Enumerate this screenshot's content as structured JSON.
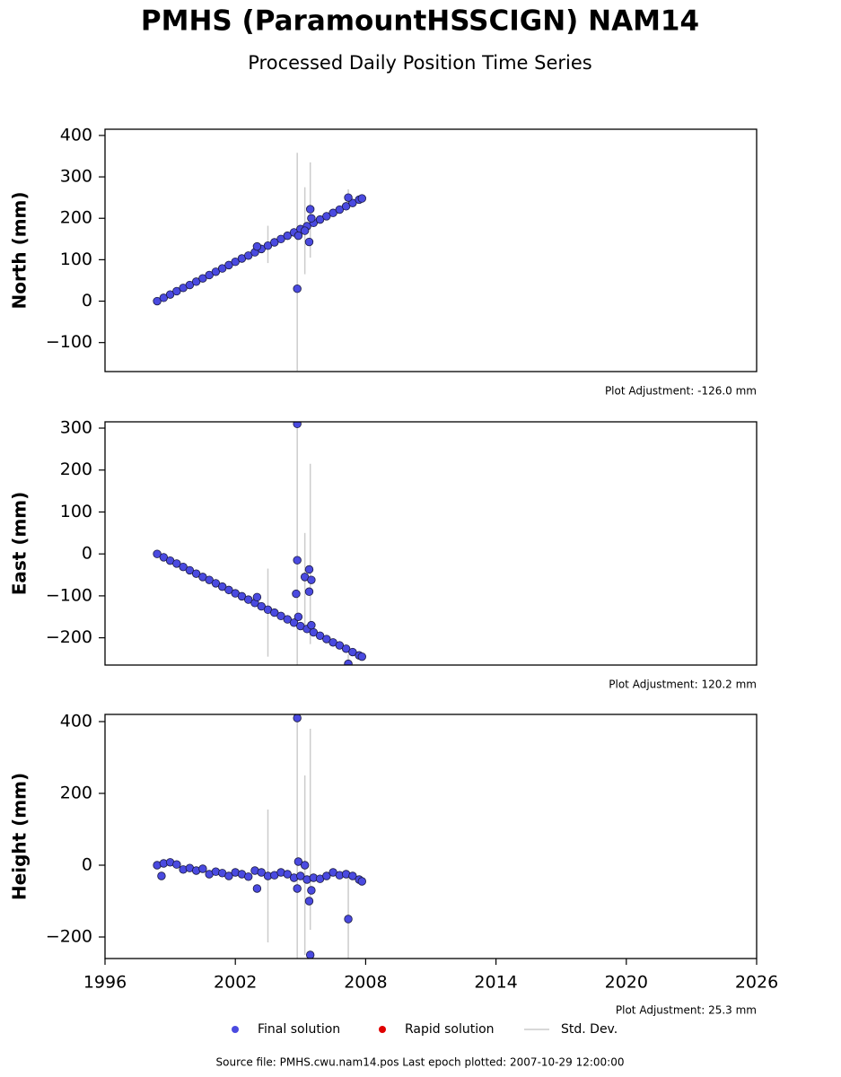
{
  "title": "PMHS (ParamountHSSCIGN) NAM14",
  "subtitle": "Processed Daily Position Time Series",
  "legend": [
    {
      "name": "Final solution",
      "color": "#4a4ae0",
      "style": "point"
    },
    {
      "name": "Rapid solution",
      "color": "#e00000",
      "style": "point"
    },
    {
      "name": "Std. Dev.",
      "color": "#cccccc",
      "style": "line"
    }
  ],
  "footer": "Source file: PMHS.cwu.nam14.pos  Last epoch plotted: 2007-10-29 12:00:00",
  "chart_data": [
    {
      "type": "scatter",
      "y_label": "North (mm)",
      "annotation": "Plot Adjustment: -126.0 mm",
      "xlim": [
        1996,
        2026
      ],
      "ylim": [
        -170,
        415
      ],
      "yticks": [
        {
          "value": -100,
          "label": "−100"
        },
        0,
        100,
        200,
        300,
        400
      ],
      "series": [
        {
          "style": "errorbar",
          "color": "#cccccc",
          "x": [
            2003.5,
            2004.85,
            2005.2,
            2005.45,
            2007.2
          ],
          "values": [
            137,
            95,
            170,
            220,
            250
          ],
          "errors": [
            45,
            263,
            105,
            115,
            20
          ]
        },
        {
          "style": "point",
          "color": "#4a4ae0",
          "x": [
            1998.4,
            1998.7,
            1999.0,
            1999.3,
            1999.6,
            1999.9,
            2000.2,
            2000.5,
            2000.8,
            2001.1,
            2001.4,
            2001.7,
            2002.0,
            2002.3,
            2002.6,
            2002.9,
            2003.2,
            2003.5,
            2003.8,
            2004.1,
            2004.4,
            2004.7,
            2005.0,
            2005.3,
            2005.6,
            2005.9,
            2006.2,
            2006.5,
            2006.8,
            2007.1,
            2007.4,
            2007.7,
            2007.83,
            2004.85,
            2005.45,
            2005.4,
            2005.5,
            2004.9,
            2007.2,
            2003.0,
            2005.2
          ],
          "values": [
            0,
            8,
            16,
            24,
            32,
            39,
            47,
            55,
            63,
            71,
            79,
            87,
            95,
            103,
            110,
            118,
            126,
            134,
            142,
            150,
            158,
            166,
            174,
            181,
            189,
            197,
            205,
            213,
            221,
            229,
            237,
            245,
            248,
            30,
            222,
            143,
            200,
            158,
            250,
            132,
            170
          ]
        }
      ]
    },
    {
      "type": "scatter",
      "y_label": "East (mm)",
      "annotation": "Plot Adjustment: 120.2 mm",
      "xlim": [
        1996,
        2026
      ],
      "ylim": [
        -265,
        315
      ],
      "yticks": [
        {
          "value": -200,
          "label": "−200"
        },
        {
          "value": -100,
          "label": "−100"
        },
        0,
        100,
        200,
        300
      ],
      "series": [
        {
          "style": "errorbar",
          "color": "#cccccc",
          "x": [
            2003.5,
            2004.85,
            2005.2,
            2005.45,
            2007.2
          ],
          "values": [
            -140,
            25,
            -60,
            0,
            -255
          ],
          "errors": [
            105,
            290,
            110,
            215,
            15
          ]
        },
        {
          "style": "point",
          "color": "#4a4ae0",
          "x": [
            1998.4,
            1998.7,
            1999.0,
            1999.3,
            1999.6,
            1999.9,
            2000.2,
            2000.5,
            2000.8,
            2001.1,
            2001.4,
            2001.7,
            2002.0,
            2002.3,
            2002.6,
            2002.9,
            2003.2,
            2003.5,
            2003.8,
            2004.1,
            2004.4,
            2004.7,
            2005.0,
            2005.3,
            2005.6,
            2005.9,
            2006.2,
            2006.5,
            2006.8,
            2007.1,
            2007.4,
            2007.7,
            2007.83,
            2004.85,
            2004.85,
            2004.8,
            2005.2,
            2005.4,
            2005.4,
            2005.5,
            2005.5,
            2004.9,
            2003.0,
            2007.2
          ],
          "values": [
            0,
            -8,
            -16,
            -23,
            -31,
            -39,
            -47,
            -55,
            -62,
            -70,
            -78,
            -86,
            -94,
            -101,
            -109,
            -117,
            -125,
            -133,
            -140,
            -148,
            -156,
            -164,
            -172,
            -179,
            -187,
            -195,
            -203,
            -211,
            -218,
            -226,
            -234,
            -242,
            -245,
            310,
            -15,
            -95,
            -55,
            -37,
            -90,
            -62,
            -170,
            -150,
            -103,
            -262
          ]
        }
      ]
    },
    {
      "type": "scatter",
      "y_label": "Height (mm)",
      "annotation": "Plot Adjustment: 25.3 mm",
      "xlim": [
        1996,
        2026
      ],
      "ylim": [
        -260,
        420
      ],
      "xticks": [
        1996,
        2002,
        2008,
        2014,
        2020,
        2026
      ],
      "yticks": [
        {
          "value": -200,
          "label": "−200"
        },
        0,
        200,
        400
      ],
      "series": [
        {
          "style": "errorbar",
          "color": "#cccccc",
          "x": [
            2003.5,
            2004.85,
            2005.2,
            2005.45,
            2007.2
          ],
          "values": [
            -30,
            80,
            0,
            100,
            -150
          ],
          "errors": [
            185,
            340,
            250,
            280,
            120
          ]
        },
        {
          "style": "point",
          "color": "#4a4ae0",
          "x": [
            1998.4,
            1998.7,
            1999.0,
            1999.3,
            1999.6,
            1999.9,
            2000.2,
            2000.5,
            2000.8,
            2001.1,
            2001.4,
            2001.7,
            2002.0,
            2002.3,
            2002.6,
            2002.9,
            2003.2,
            2003.5,
            2003.8,
            2004.1,
            2004.4,
            2004.7,
            2005.0,
            2005.3,
            2005.6,
            2005.9,
            2006.2,
            2006.5,
            2006.8,
            2007.1,
            2007.4,
            2007.7,
            2007.83,
            1998.6,
            2003.0,
            2004.85,
            2004.85,
            2004.9,
            2005.2,
            2005.4,
            2005.45,
            2005.5,
            2007.2
          ],
          "values": [
            0,
            5,
            8,
            2,
            -12,
            -8,
            -15,
            -10,
            -25,
            -18,
            -22,
            -30,
            -20,
            -25,
            -32,
            -15,
            -20,
            -30,
            -28,
            -20,
            -25,
            -35,
            -30,
            -40,
            -35,
            -38,
            -30,
            -20,
            -28,
            -25,
            -30,
            -40,
            -45,
            -30,
            -65,
            410,
            -65,
            10,
            0,
            -100,
            -250,
            -70,
            -150
          ]
        }
      ]
    }
  ]
}
